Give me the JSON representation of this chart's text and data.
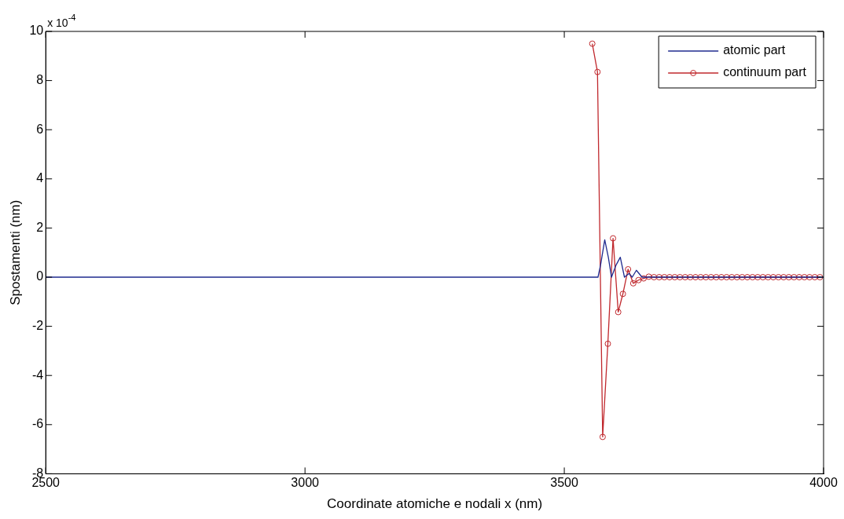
{
  "chart_data": {
    "type": "line",
    "xlabel": "Coordinate atomiche e nodali x (nm)",
    "ylabel": "Spostamenti (nm)",
    "annotations": [
      "x 10$^{-4}$"
    ],
    "xlim": [
      2500,
      4000
    ],
    "xticks": [
      2500,
      3000,
      3500,
      4000
    ],
    "ylim": [
      -8,
      10
    ],
    "yticks": [
      -8,
      -6,
      -4,
      -2,
      0,
      2,
      4,
      6,
      8,
      10
    ],
    "grid": false,
    "legend": "top right",
    "series": [
      {
        "name": "atomic part",
        "color": "#1f2b8f",
        "marker": "none",
        "x": [
          2500,
          3555,
          3565,
          3570,
          3578,
          3585,
          3591,
          3600,
          3608,
          3616,
          3625,
          3631,
          3639,
          3650,
          4000
        ],
        "values": [
          0,
          0,
          0,
          0.5,
          1.52,
          0.8,
          0,
          0.5,
          0.81,
          0,
          0.15,
          0,
          0.28,
          0,
          0
        ]
      },
      {
        "name": "continuum part",
        "color": "#c0282d",
        "marker": "circle",
        "x": [
          3554,
          3564,
          3574,
          3584,
          3594,
          3604,
          3613,
          3623,
          3633,
          3643,
          3653,
          3663,
          3673,
          3683,
          3693,
          3703,
          3713,
          3723,
          3733,
          3743,
          3753,
          3763,
          3773,
          3783,
          3793,
          3803,
          3813,
          3823,
          3833,
          3843,
          3853,
          3863,
          3873,
          3883,
          3893,
          3903,
          3913,
          3923,
          3933,
          3943,
          3953,
          3963,
          3973,
          3983,
          3993
        ],
        "values": [
          9.5,
          8.35,
          -6.5,
          -2.71,
          1.58,
          -1.42,
          -0.68,
          0.32,
          -0.25,
          -0.12,
          -0.05,
          0.02,
          0,
          0,
          0,
          0,
          0,
          0,
          0,
          0,
          0,
          0,
          0,
          0,
          0,
          0,
          0,
          0,
          0,
          0,
          0,
          0,
          0,
          0,
          0,
          0,
          0,
          0,
          0,
          0,
          0,
          0,
          0,
          0,
          0
        ]
      }
    ]
  }
}
